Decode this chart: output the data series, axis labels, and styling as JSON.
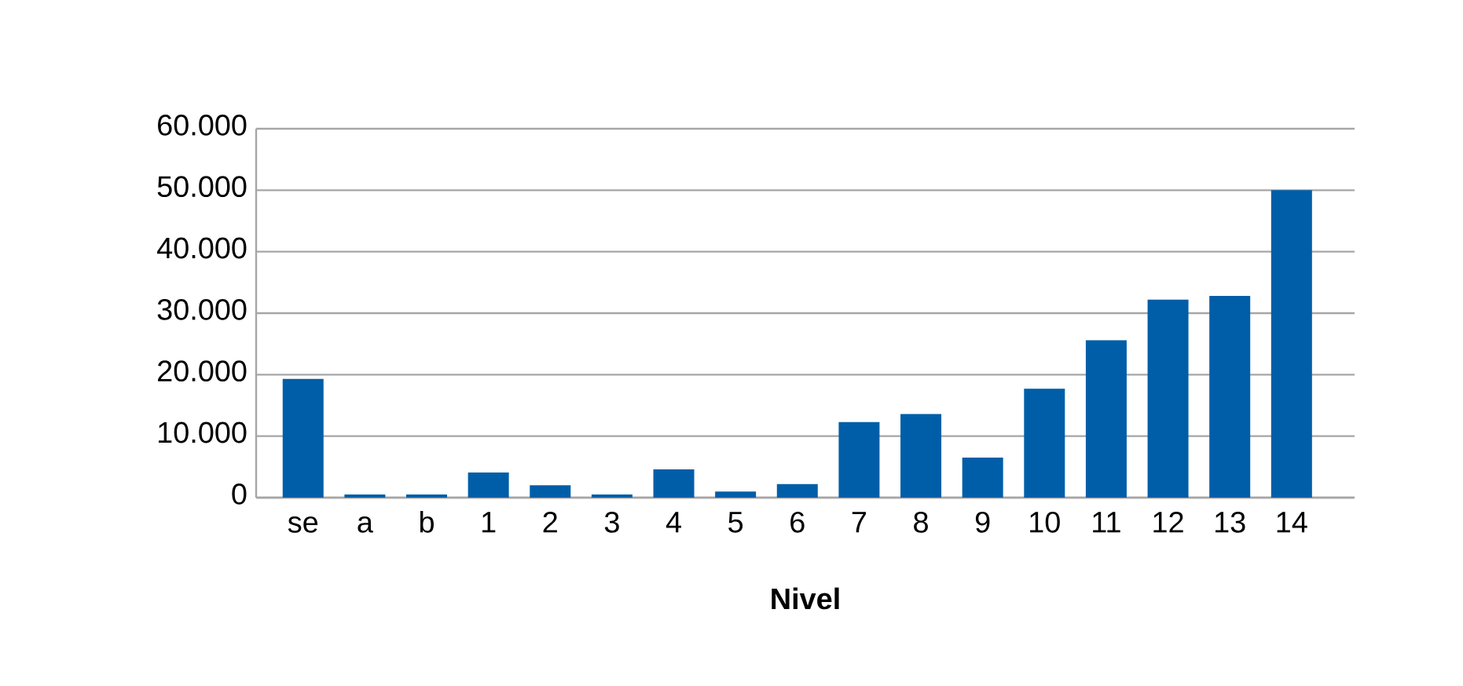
{
  "chart_data": {
    "type": "bar",
    "xlabel": "**Nivel**",
    "categories": [
      "se",
      "a",
      "b",
      "1",
      "2",
      "3",
      "4",
      "5",
      "6",
      "7",
      "8",
      "9",
      "10",
      "11",
      "12",
      "13",
      "14"
    ],
    "values": [
      19300,
      500,
      500,
      4100,
      2000,
      500,
      4600,
      1000,
      2200,
      12300,
      13600,
      6500,
      17700,
      25600,
      32200,
      32800,
      50000
    ],
    "color": "#005ea8",
    "ylim": [
      0,
      60000
    ],
    "yticks": [
      {
        "value": 0,
        "label": "0"
      },
      {
        "value": 10000,
        "label": "10.000"
      },
      {
        "value": 20000,
        "label": "20.000"
      },
      {
        "value": 30000,
        "label": "30.000"
      },
      {
        "value": 40000,
        "label": "40.000"
      },
      {
        "value": 50000,
        "label": "50.000"
      },
      {
        "value": 60000,
        "label": "60.000"
      }
    ],
    "grid": "y"
  }
}
